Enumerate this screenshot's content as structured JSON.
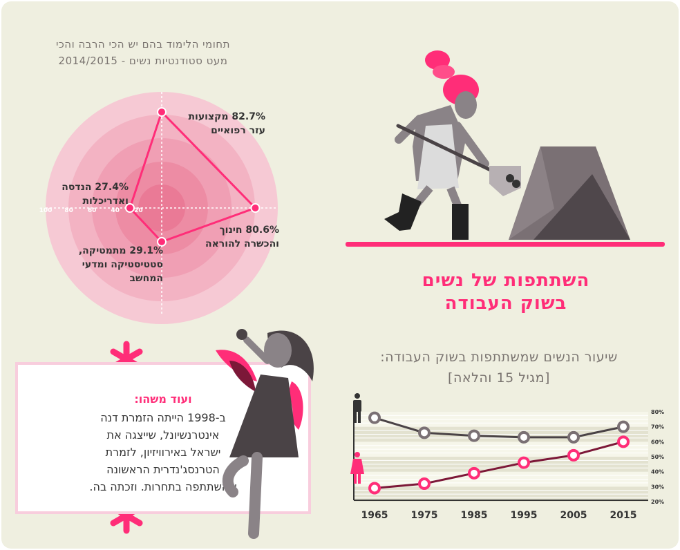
{
  "radar": {
    "title": "תחומי הלימוד בהם יש הכי הרבה והכי\nמעט סטודנטיות נשים - 2014/2015"
  },
  "main_title": "השתתפות של נשים\nבשוק העבודה",
  "line_title": "שיעור הנשים שמשתתפות בשוק העבודה:\n[מגיל 15 והלאה]",
  "trivia": {
    "heading": "ועוד משהו:",
    "body": "ב-1998 הייתה הזמרת דנה\nאינטרנשיונל, שייצגה את\nישראל באירוויזיון, לזמרת\nהטרנסג'נדרית הראשונה\nשהשתתפה בתחרות. וזכתה בה."
  },
  "colors": {
    "accent": "#ff2d78",
    "men_line": "#4a4346",
    "women_line": "#7c1838",
    "background": "#efefe0"
  },
  "icons": {
    "man": "man-icon",
    "woman": "woman-icon",
    "asterisk": "asterisk-icon"
  },
  "chart_data": [
    {
      "type": "radar",
      "title": "תחומי הלימוד בהם יש הכי הרבה והכי מעט סטודנטיות נשים - 2014/2015",
      "radial_ticks": [
        "100",
        "80",
        "60",
        "40",
        "20"
      ],
      "rmax": 100,
      "axes": [
        {
          "label": "מקצועות\nעזר רפואיים",
          "pct_text": "82.7%",
          "value": 82.7,
          "direction": "up"
        },
        {
          "label": "חינוך\nוהכשרה להוראה",
          "pct_text": "80.6%",
          "value": 80.6,
          "direction": "right"
        },
        {
          "label": "מתמטיקה,\nסטטיסטיקה ומדעי\nהמחשב",
          "pct_text": "29.1%",
          "value": 29.1,
          "direction": "down"
        },
        {
          "label": "הנדסה\nואדריכלות",
          "pct_text": "27.4%",
          "value": 27.4,
          "direction": "left"
        }
      ]
    },
    {
      "type": "line",
      "title": "שיעור הנשים שמשתתפות בשוק העבודה: [מגיל 15 והלאה]",
      "x": [
        "1965",
        "1975",
        "1985",
        "1995",
        "2005",
        "2015"
      ],
      "ylim": [
        20,
        80
      ],
      "y_ticks": [
        "80%",
        "70%",
        "60%",
        "50%",
        "40%",
        "30%",
        "20%"
      ],
      "series": [
        {
          "icon": "man-icon",
          "values": [
            76,
            66,
            64,
            63,
            63,
            70
          ]
        },
        {
          "icon": "woman-icon",
          "values": [
            29,
            32,
            39,
            46,
            51,
            60
          ]
        }
      ]
    }
  ]
}
